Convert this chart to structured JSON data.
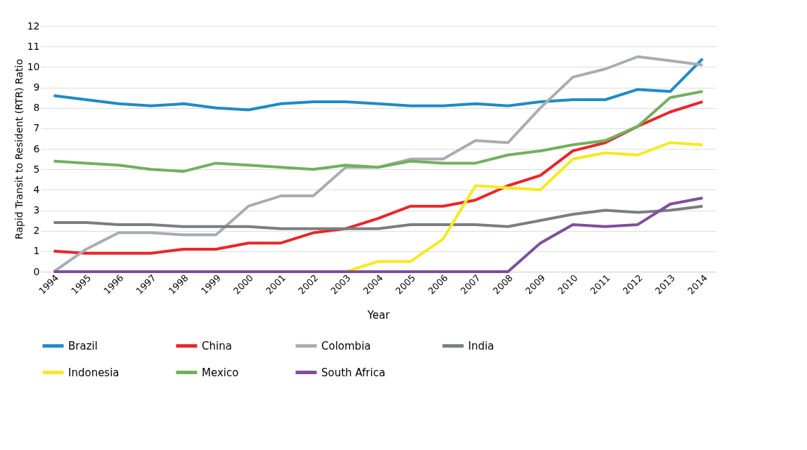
{
  "chart_data": {
    "type": "line",
    "xlabel": "Year",
    "ylabel": "Rapid Transit to Resident (RTR) Ratio",
    "categories": [
      "1994",
      "1995",
      "1996",
      "1997",
      "1998",
      "1999",
      "2000",
      "2001",
      "2002",
      "2003",
      "2004",
      "2005",
      "2006",
      "2007",
      "2008",
      "2009",
      "2010",
      "2011",
      "2012",
      "2013",
      "2014"
    ],
    "ylim": [
      0,
      12
    ],
    "yticks": [
      0,
      1,
      2,
      3,
      4,
      5,
      6,
      7,
      8,
      9,
      10,
      11,
      12
    ],
    "grid": "y",
    "legend": "bottom",
    "marker": "none",
    "line_style": "solid",
    "series": [
      {
        "name": "Brazil",
        "color": "#1f8ac8",
        "values": [
          8.6,
          8.4,
          8.2,
          8.1,
          8.2,
          8.0,
          7.9,
          8.2,
          8.3,
          8.3,
          8.2,
          8.1,
          8.1,
          8.2,
          8.1,
          8.3,
          8.4,
          8.4,
          8.9,
          8.8,
          10.4
        ]
      },
      {
        "name": "China",
        "color": "#e8262a",
        "values": [
          1.0,
          0.9,
          0.9,
          0.9,
          1.1,
          1.1,
          1.4,
          1.4,
          1.9,
          2.1,
          2.6,
          3.2,
          3.2,
          3.5,
          4.2,
          4.7,
          5.9,
          6.3,
          7.1,
          7.8,
          8.3
        ]
      },
      {
        "name": "Colombia",
        "color": "#a8adb3",
        "values": [
          0,
          1.1,
          1.9,
          1.9,
          1.8,
          1.8,
          3.2,
          3.7,
          3.7,
          5.1,
          5.1,
          5.5,
          5.5,
          6.4,
          6.3,
          8.0,
          9.5,
          9.9,
          10.5,
          10.3,
          10.1
        ]
      },
      {
        "name": "India",
        "color": "#7b7d80",
        "values": [
          2.4,
          2.4,
          2.3,
          2.3,
          2.2,
          2.2,
          2.2,
          2.1,
          2.1,
          2.1,
          2.1,
          2.3,
          2.3,
          2.3,
          2.2,
          2.5,
          2.8,
          3.0,
          2.9,
          3.0,
          3.2
        ]
      },
      {
        "name": "Indonesia",
        "color": "#f5ea1e",
        "values": [
          null,
          null,
          null,
          null,
          null,
          null,
          null,
          null,
          null,
          0,
          0.5,
          0.5,
          1.6,
          4.2,
          4.1,
          4.0,
          5.5,
          5.8,
          5.7,
          6.3,
          6.2
        ]
      },
      {
        "name": "Mexico",
        "color": "#72b05b",
        "values": [
          5.4,
          5.3,
          5.2,
          5.0,
          4.9,
          5.3,
          5.2,
          5.1,
          5.0,
          5.2,
          5.1,
          5.4,
          5.3,
          5.3,
          5.7,
          5.9,
          6.2,
          6.4,
          7.1,
          8.5,
          8.8
        ]
      },
      {
        "name": "South Africa",
        "color": "#7d4f9c",
        "values": [
          0,
          0,
          0,
          0,
          0,
          0,
          0,
          0,
          0,
          0,
          0,
          0,
          0,
          0,
          0,
          1.4,
          2.3,
          2.2,
          2.3,
          3.3,
          3.6
        ]
      }
    ]
  }
}
